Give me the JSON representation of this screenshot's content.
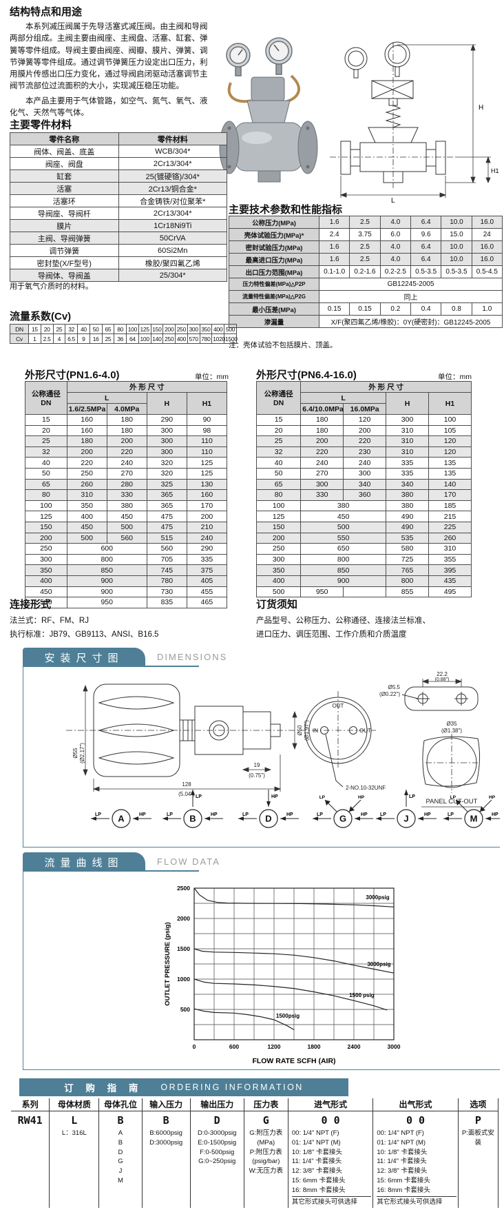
{
  "intro": {
    "title": "结构特点和用途",
    "para1": "本系列减压阀属于先导活塞式减压阀。由主阀和导阀两部分组成。主阀主要由阀座、主阀盘、活塞、缸套、弹簧等零件组成。导阀主要由阀座、阀瓣、膜片、弹簧、调节弹簧等零件组成。通过调节弹簧压力设定出口压力，利用膜片传感出口压力变化，通过导阀启闭驱动活塞调节主阀节流部位过流面积的大小，实现减压稳压功能。",
    "para2": "本产品主要用于气体管路，如空气、氮气、氧气、液化气、天然气等气体。"
  },
  "materials": {
    "title": "主要零件材料",
    "headers": [
      "零件名称",
      "零件材料"
    ],
    "rows": [
      [
        "阀体、阀盖、底盖",
        "WCB/304*"
      ],
      [
        "阀座、阀盘",
        "2Cr13/304*"
      ],
      [
        "缸套",
        "25(镀硬铬)/304*"
      ],
      [
        "活塞",
        "2Cr13/铜合金*"
      ],
      [
        "活塞环",
        "合金铸铁/对位聚苯*"
      ],
      [
        "导阀座、导阀杆",
        "2Cr13/304*"
      ],
      [
        "膜片",
        "1Cr18Ni9Ti"
      ],
      [
        "主阀、导阀弹簧",
        "50CrVA"
      ],
      [
        "调节弹簧",
        "60Si2Mn"
      ],
      [
        "密封垫(X/F型号)",
        "橡胶/聚四氟乙烯"
      ],
      [
        "导阀体、导阀盖",
        "25/304*"
      ]
    ],
    "note": "用于氧气介质时的材料。"
  },
  "tech": {
    "title": "主要技术参数和性能指标",
    "rows": [
      {
        "label": "公称压力(MPa)",
        "values": [
          "1.6",
          "2.5",
          "4.0",
          "6.4",
          "10.0",
          "16.0"
        ]
      },
      {
        "label": "壳体试验压力(MPa)*",
        "values": [
          "2.4",
          "3.75",
          "6.0",
          "9.6",
          "15.0",
          "24"
        ]
      },
      {
        "label": "密封试验压力(MPa)",
        "values": [
          "1.6",
          "2.5",
          "4.0",
          "6.4",
          "10.0",
          "16.0"
        ]
      },
      {
        "label": "最高进口压力(MPa)",
        "values": [
          "1.6",
          "2.5",
          "4.0",
          "6.4",
          "10.0",
          "16.0"
        ]
      },
      {
        "label": "出口压力范围(MPa)",
        "values": [
          "0.1-1.0",
          "0.2-1.6",
          "0.2-2.5",
          "0.5-3.5",
          "0.5-3.5",
          "0.5-4.5"
        ]
      },
      {
        "label": "压力特性偏差(MPa)△P2P",
        "span": "GB12245-2005"
      },
      {
        "label": "流量特性偏差(MPa)△P2G",
        "span": "同上"
      },
      {
        "label": "最小压差(MPa)",
        "values": [
          "0.15",
          "0.15",
          "0.2",
          "0.4",
          "0.8",
          "1.0"
        ]
      },
      {
        "label": "渗漏量",
        "span": "X/F(聚四氟乙烯/橡胶)：0Y(硬密封)：GB12245-2005"
      }
    ],
    "note": "注：壳体试验不包括膜片、顶盖。"
  },
  "cv": {
    "title": "流量系数(Cv)",
    "rows": [
      [
        "DN",
        "15",
        "20",
        "25",
        "32",
        "40",
        "50",
        "65",
        "80",
        "100",
        "125",
        "150",
        "200",
        "250",
        "300",
        "350",
        "400",
        "500"
      ],
      [
        "Cv",
        "1",
        "2.5",
        "4",
        "6.5",
        "9",
        "16",
        "25",
        "36",
        "64",
        "100",
        "140",
        "250",
        "400",
        "570",
        "780",
        "1020",
        "1500"
      ]
    ]
  },
  "dims1": {
    "title": "外形尺寸(PN1.6-4.0)",
    "unit": "单位：mm",
    "dn1": "公称通径",
    "dn2": "DN",
    "group": "外 形 尺 寸",
    "l": "L",
    "sub1": "1.6/2.5MPa",
    "sub2": "4.0MPa",
    "h": "H",
    "h1": "H1",
    "rows": [
      [
        "15",
        "160",
        "180",
        "290",
        "90"
      ],
      [
        "20",
        "160",
        "180",
        "300",
        "98"
      ],
      [
        "25",
        "180",
        "200",
        "300",
        "110"
      ],
      [
        "32",
        "200",
        "220",
        "300",
        "110"
      ],
      [
        "40",
        "220",
        "240",
        "320",
        "125"
      ],
      [
        "50",
        "250",
        "270",
        "320",
        "125"
      ],
      [
        "65",
        "260",
        "280",
        "325",
        "130"
      ],
      [
        "80",
        "310",
        "330",
        "365",
        "160"
      ],
      [
        "100",
        "350",
        "380",
        "365",
        "170"
      ],
      [
        "125",
        "400",
        "450",
        "475",
        "200"
      ],
      [
        "150",
        "450",
        "500",
        "475",
        "210"
      ],
      [
        "200",
        "500",
        "560",
        "515",
        "240"
      ],
      [
        "250",
        "600",
        null,
        "560",
        "290"
      ],
      [
        "300",
        "800",
        null,
        "705",
        "335"
      ],
      [
        "350",
        "850",
        null,
        "745",
        "375"
      ],
      [
        "400",
        "900",
        null,
        "780",
        "405"
      ],
      [
        "450",
        "900",
        null,
        "730",
        "455"
      ],
      [
        "500",
        "950",
        null,
        "835",
        "465"
      ]
    ]
  },
  "dims2": {
    "title": "外形尺寸(PN6.4-16.0)",
    "unit": "单位：mm",
    "dn1": "公称通径",
    "dn2": "DN",
    "group": "外 形 尺 寸",
    "l": "L",
    "sub1": "6.4/10.0MPa",
    "sub2": "16.0MPa",
    "h": "H",
    "h1": "H1",
    "rows": [
      [
        "15",
        "180",
        "120",
        "300",
        "100"
      ],
      [
        "20",
        "180",
        "200",
        "310",
        "105"
      ],
      [
        "25",
        "200",
        "220",
        "310",
        "120"
      ],
      [
        "32",
        "220",
        "230",
        "310",
        "120"
      ],
      [
        "40",
        "240",
        "240",
        "335",
        "135"
      ],
      [
        "50",
        "270",
        "300",
        "335",
        "135"
      ],
      [
        "65",
        "300",
        "340",
        "340",
        "140"
      ],
      [
        "80",
        "330",
        "360",
        "380",
        "170"
      ],
      [
        "100",
        "380",
        null,
        "380",
        "185"
      ],
      [
        "125",
        "450",
        null,
        "490",
        "215"
      ],
      [
        "150",
        "500",
        null,
        "490",
        "225"
      ],
      [
        "200",
        "550",
        null,
        "535",
        "260"
      ],
      [
        "250",
        "650",
        null,
        "580",
        "310"
      ],
      [
        "300",
        "800",
        null,
        "725",
        "355"
      ],
      [
        "350",
        "850",
        null,
        "765",
        "395"
      ],
      [
        "400",
        "900",
        null,
        "800",
        "435"
      ],
      [
        "500",
        "950",
        "",
        "855",
        "495"
      ]
    ]
  },
  "connection": {
    "title": "连接形式",
    "line1": "法兰式：RF、FM、RJ",
    "line2": "执行标准：JB79、GB9113、ANSI、B16.5"
  },
  "ordering_notes": {
    "title": "订货须知",
    "line1": "产品型号、公称压力、公称通径、连接法兰标准、",
    "line2": "进口压力、调压范围、工作介质和介质温度"
  },
  "tech_drawing": {
    "h": "H",
    "h1": "H1",
    "l": "L"
  },
  "dims_section": {
    "badge": "安装尺寸图",
    "badge_en": "DIMENSIONS",
    "labels": {
      "knob_dia": "Ø55",
      "knob_dia_in": "(Ø2.17\")",
      "body_len": "128",
      "body_len_in": "(5.04\")",
      "port_depth": "19",
      "port_depth_in": "(0.75\")",
      "face_dia": "Ø50",
      "face_dia_in": "(Ø1.97\")",
      "out_top": "OUT",
      "in_port": "IN",
      "out_port": "OUT",
      "thread": "2-NO.10-32UNF",
      "bracket_w": "22.2",
      "bracket_w_in": "(0.88\")",
      "hole_dia": "Ø5.5",
      "hole_dia_in": "(Ø0.22\")",
      "cutout_dia": "Ø35",
      "cutout_dia_in": "(Ø1.38\")",
      "panel_cutout": "PANEL CUT-OUT"
    },
    "lp": "LP",
    "hp": "HP",
    "flow_patterns": [
      {
        "code": "A",
        "top": "none"
      },
      {
        "code": "B",
        "top": "lp-up"
      },
      {
        "code": "D",
        "top": "hp-down"
      },
      {
        "code": "G",
        "top": "lp-hp-diag"
      },
      {
        "code": "J",
        "top": "lp-up"
      },
      {
        "code": "M",
        "top": "lp-hp-diag"
      }
    ]
  },
  "flow_section": {
    "badge": "流量曲线图",
    "badge_en": "FLOW DATA"
  },
  "chart_data": {
    "type": "line",
    "xlabel": "FLOW RATE SCFH (AIR)",
    "ylabel": "OUTLET PRESSURE (psig)",
    "xlim": [
      0,
      3000
    ],
    "ylim": [
      0,
      2500
    ],
    "xticks": [
      0,
      600,
      1200,
      1800,
      2400,
      3000
    ],
    "yticks": [
      500,
      1000,
      1500,
      2000,
      2500
    ],
    "x_minor_step": 300,
    "y_minor_step": 250,
    "grid": true,
    "series": [
      {
        "name": "3000psig",
        "label_pos": [
          2580,
          2320
        ],
        "x": [
          0,
          80,
          200,
          350,
          500,
          800,
          1200,
          1600,
          2000,
          2400,
          2700,
          3000
        ],
        "y": [
          2500,
          2390,
          2300,
          2265,
          2255,
          2250,
          2248,
          2245,
          2238,
          2225,
          2210,
          2190
        ]
      },
      {
        "name": "3000psig",
        "label_pos": [
          2600,
          1215
        ],
        "x": [
          0,
          120,
          300,
          600,
          900,
          1200,
          1500,
          1800,
          2100,
          2400,
          2700,
          3000
        ],
        "y": [
          1500,
          1460,
          1445,
          1440,
          1430,
          1418,
          1395,
          1355,
          1300,
          1230,
          1165,
          1100
        ]
      },
      {
        "name": "1500 psig",
        "label_pos": [
          2330,
          705
        ],
        "x": [
          0,
          150,
          300,
          600,
          900,
          1200,
          1500,
          1800,
          2100,
          2400,
          2700,
          2900
        ],
        "y": [
          1000,
          950,
          930,
          920,
          905,
          880,
          845,
          790,
          725,
          645,
          560,
          490
        ]
      },
      {
        "name": "1500psig",
        "label_pos": [
          1230,
          365
        ],
        "x": [
          0,
          150,
          300,
          600,
          800,
          1000,
          1200,
          1400,
          1500
        ],
        "y": [
          510,
          470,
          450,
          440,
          415,
          380,
          330,
          230,
          165
        ]
      }
    ]
  },
  "ordering": {
    "header_cn": "订 购 指 南",
    "header_en": "ORDERING  INFORMATION",
    "columns": [
      {
        "header": "系列",
        "code": "RW41",
        "items": []
      },
      {
        "header": "母体材质",
        "code": "L",
        "items": [
          "L：316L"
        ]
      },
      {
        "header": "母体孔位",
        "code": "B",
        "items": [
          "A",
          "B",
          "D",
          "G",
          "J",
          "M"
        ]
      },
      {
        "header": "输入压力",
        "code": "B",
        "items": [
          "B:6000psig",
          "D:3000psig"
        ]
      },
      {
        "header": "输出压力",
        "code": "D",
        "items": [
          "D:0-3000psig",
          "E:0-1500psig",
          "F:0-500psig",
          "G:0~250psig"
        ]
      },
      {
        "header": "压力表",
        "code": "G",
        "items": [
          "G:附压力表",
          "(MPa)",
          "P:附压力表",
          "(psig/bar)",
          "W:无压力表"
        ]
      },
      {
        "header": "进气形式",
        "code": "0 0",
        "items": [
          "00: 1/4\" NPT (F)",
          "01: 1/4\" NPT (M)",
          "10: 1/8\" 卡套接头",
          "11: 1/4\" 卡套接头",
          "12: 3/8\" 卡套接头",
          "15: 6mm 卡套接头",
          "16: 8mm 卡套接头",
          "其它形式接头可供选择"
        ]
      },
      {
        "header": "出气形式",
        "code": "0 0",
        "items": [
          "00: 1/4\" NPT (F)",
          "01: 1/4\" NPT (M)",
          "10: 1/8\" 卡套接头",
          "11: 1/4\" 卡套接头",
          "12: 3/8\" 卡套接头",
          "15: 6mm 卡套接头",
          "16: 8mm 卡套接头",
          "其它形式接头可供选择"
        ]
      },
      {
        "header": "选项",
        "code": "P",
        "items": [
          "P:面板式安装"
        ]
      }
    ]
  }
}
